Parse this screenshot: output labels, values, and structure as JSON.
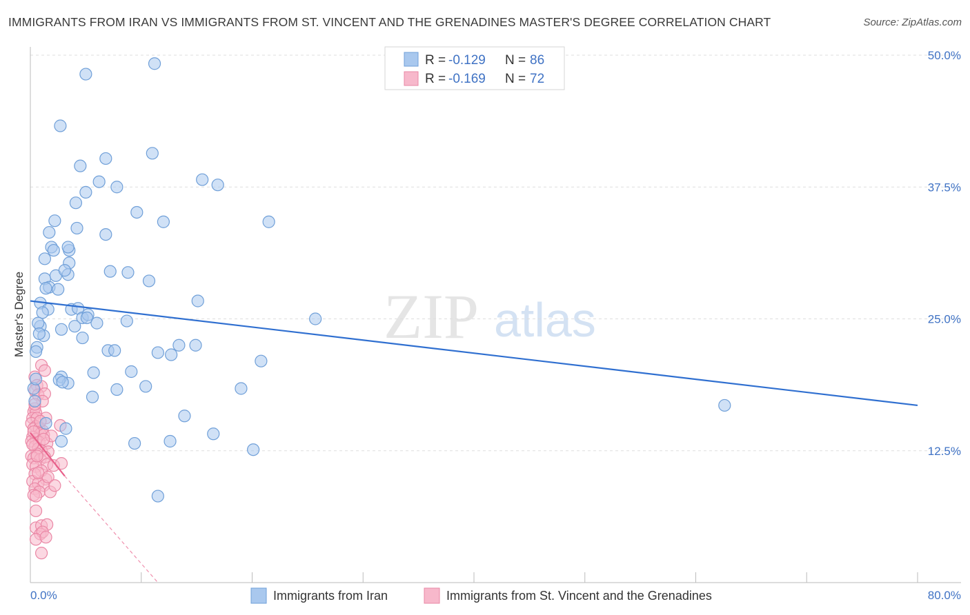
{
  "header": {
    "title": "IMMIGRANTS FROM IRAN VS IMMIGRANTS FROM ST. VINCENT AND THE GRENADINES MASTER'S DEGREE CORRELATION CHART",
    "source": "Source: ZipAtlas.com"
  },
  "watermark": {
    "zip": "ZIP",
    "atlas": "atlas"
  },
  "colors": {
    "iran_fill": "#a9c8ee",
    "iran_stroke": "#6f9fd8",
    "iran_line": "#2f6fd0",
    "svg_fill": "#f7b8cb",
    "svg_stroke": "#ea87a5",
    "svg_line": "#e8608a",
    "axis_text": "#3f72c4",
    "grid": "#dddddd"
  },
  "stats_box": {
    "rows": [
      {
        "r_label": "R =",
        "r_value": "-0.129",
        "n_label": "N =",
        "n_value": "86"
      },
      {
        "r_label": "R =",
        "r_value": "-0.169",
        "n_label": "N =",
        "n_value": "72"
      }
    ]
  },
  "chart_data": {
    "type": "scatter",
    "title": "IMMIGRANTS FROM IRAN VS IMMIGRANTS FROM ST. VINCENT AND THE GRENADINES MASTER'S DEGREE CORRELATION CHART",
    "xlabel": "",
    "ylabel": "Master's Degree",
    "xlim": [
      0,
      80
    ],
    "ylim": [
      0,
      50
    ],
    "x_tick_labels": [
      "0.0%",
      "80.0%"
    ],
    "y_ticks": [
      12.5,
      25.0,
      37.5,
      50.0
    ],
    "y_tick_labels": [
      "12.5%",
      "25.0%",
      "37.5%",
      "50.0%"
    ],
    "grid": true,
    "legend": [
      "Immigrants from Iran",
      "Immigrants from St. Vincent and the Grenadines"
    ],
    "series": [
      {
        "name": "Immigrants from Iran",
        "R": -0.129,
        "N": 86,
        "trend": {
          "x": [
            0,
            80
          ],
          "y": [
            26.7,
            16.8
          ]
        },
        "points": [
          [
            11.2,
            49.2
          ],
          [
            5.0,
            48.2
          ],
          [
            2.7,
            43.3
          ],
          [
            6.8,
            40.2
          ],
          [
            11.0,
            40.7
          ],
          [
            4.5,
            39.5
          ],
          [
            6.2,
            38.0
          ],
          [
            7.8,
            37.5
          ],
          [
            15.5,
            38.2
          ],
          [
            16.9,
            37.7
          ],
          [
            5.0,
            37.0
          ],
          [
            4.1,
            36.0
          ],
          [
            9.6,
            35.1
          ],
          [
            12.0,
            34.2
          ],
          [
            21.5,
            34.2
          ],
          [
            2.2,
            34.3
          ],
          [
            4.2,
            33.6
          ],
          [
            1.7,
            33.2
          ],
          [
            6.8,
            33.0
          ],
          [
            1.9,
            31.8
          ],
          [
            2.1,
            31.5
          ],
          [
            3.5,
            31.5
          ],
          [
            3.4,
            31.8
          ],
          [
            1.3,
            30.7
          ],
          [
            3.5,
            30.3
          ],
          [
            7.2,
            29.5
          ],
          [
            8.8,
            29.4
          ],
          [
            3.4,
            29.2
          ],
          [
            1.3,
            28.8
          ],
          [
            2.3,
            29.1
          ],
          [
            10.7,
            28.6
          ],
          [
            1.7,
            28.0
          ],
          [
            2.5,
            27.8
          ],
          [
            15.1,
            26.7
          ],
          [
            0.9,
            26.5
          ],
          [
            3.7,
            25.9
          ],
          [
            4.3,
            26.0
          ],
          [
            1.6,
            25.9
          ],
          [
            1.1,
            25.6
          ],
          [
            25.7,
            25.0
          ],
          [
            4.7,
            25.1
          ],
          [
            5.2,
            25.4
          ],
          [
            5.1,
            25.1
          ],
          [
            8.7,
            24.8
          ],
          [
            4.0,
            24.3
          ],
          [
            0.9,
            24.3
          ],
          [
            2.8,
            24.0
          ],
          [
            0.7,
            24.6
          ],
          [
            1.2,
            23.4
          ],
          [
            4.7,
            23.2
          ],
          [
            13.4,
            22.5
          ],
          [
            14.9,
            22.5
          ],
          [
            0.6,
            22.3
          ],
          [
            0.5,
            21.9
          ],
          [
            7.0,
            22.0
          ],
          [
            7.6,
            22.0
          ],
          [
            11.5,
            21.8
          ],
          [
            12.7,
            21.6
          ],
          [
            20.8,
            21.0
          ],
          [
            9.1,
            20.0
          ],
          [
            5.7,
            19.9
          ],
          [
            2.8,
            19.5
          ],
          [
            3.4,
            18.9
          ],
          [
            2.6,
            19.2
          ],
          [
            10.4,
            18.6
          ],
          [
            19.0,
            18.4
          ],
          [
            7.8,
            18.3
          ],
          [
            5.6,
            17.6
          ],
          [
            0.3,
            18.4
          ],
          [
            0.4,
            17.2
          ],
          [
            62.6,
            16.8
          ],
          [
            13.9,
            15.8
          ],
          [
            1.4,
            15.1
          ],
          [
            3.2,
            14.6
          ],
          [
            16.5,
            14.1
          ],
          [
            2.8,
            13.4
          ],
          [
            9.4,
            13.2
          ],
          [
            12.6,
            13.4
          ],
          [
            20.1,
            12.6
          ],
          [
            11.5,
            8.2
          ],
          [
            0.5,
            19.3
          ],
          [
            2.9,
            19.0
          ],
          [
            6.0,
            24.6
          ],
          [
            1.4,
            27.9
          ],
          [
            3.1,
            29.6
          ],
          [
            0.8,
            23.6
          ]
        ]
      },
      {
        "name": "Immigrants from St. Vincent and the Grenadines",
        "R": -0.169,
        "N": 72,
        "trend": {
          "x": [
            0,
            3.1
          ],
          "y": [
            14.2,
            10.1
          ]
        },
        "trend_extension": {
          "x": [
            3.1,
            11.5
          ],
          "y": [
            10.1,
            0
          ]
        },
        "points": [
          [
            1.0,
            20.6
          ],
          [
            1.3,
            20.1
          ],
          [
            0.4,
            19.5
          ],
          [
            0.6,
            18.7
          ],
          [
            1.0,
            18.6
          ],
          [
            0.4,
            18.2
          ],
          [
            0.7,
            17.8
          ],
          [
            1.3,
            17.9
          ],
          [
            1.1,
            17.2
          ],
          [
            0.4,
            16.5
          ],
          [
            0.3,
            16.2
          ],
          [
            0.5,
            16.1
          ],
          [
            0.2,
            15.6
          ],
          [
            0.6,
            15.6
          ],
          [
            1.4,
            15.6
          ],
          [
            0.1,
            15.1
          ],
          [
            0.5,
            14.8
          ],
          [
            0.3,
            14.6
          ],
          [
            0.8,
            14.6
          ],
          [
            1.1,
            14.4
          ],
          [
            0.9,
            14.1
          ],
          [
            1.2,
            14.0
          ],
          [
            0.2,
            13.8
          ],
          [
            0.5,
            13.6
          ],
          [
            0.1,
            13.4
          ],
          [
            0.8,
            13.3
          ],
          [
            1.5,
            13.2
          ],
          [
            1.9,
            13.9
          ],
          [
            2.7,
            14.9
          ],
          [
            0.4,
            12.9
          ],
          [
            0.7,
            12.7
          ],
          [
            1.0,
            12.5
          ],
          [
            1.6,
            12.4
          ],
          [
            0.6,
            12.2
          ],
          [
            0.1,
            12.0
          ],
          [
            0.3,
            11.8
          ],
          [
            0.9,
            11.7
          ],
          [
            1.3,
            11.9
          ],
          [
            1.5,
            11.2
          ],
          [
            2.1,
            11.1
          ],
          [
            2.8,
            11.3
          ],
          [
            0.2,
            11.2
          ],
          [
            0.5,
            11.0
          ],
          [
            1.0,
            10.6
          ],
          [
            0.4,
            10.3
          ],
          [
            1.4,
            9.8
          ],
          [
            0.2,
            9.6
          ],
          [
            0.7,
            9.4
          ],
          [
            1.2,
            9.2
          ],
          [
            0.4,
            8.9
          ],
          [
            0.8,
            8.6
          ],
          [
            1.8,
            8.6
          ],
          [
            0.3,
            8.3
          ],
          [
            0.5,
            8.2
          ],
          [
            1.6,
            10.0
          ],
          [
            0.5,
            6.8
          ],
          [
            0.5,
            5.2
          ],
          [
            1.0,
            5.4
          ],
          [
            1.5,
            5.5
          ],
          [
            0.9,
            4.6
          ],
          [
            1.1,
            4.8
          ],
          [
            0.5,
            4.1
          ],
          [
            1.4,
            4.3
          ],
          [
            1.0,
            2.8
          ],
          [
            2.2,
            9.2
          ],
          [
            0.2,
            13.1
          ],
          [
            0.6,
            12.0
          ],
          [
            0.9,
            15.3
          ],
          [
            0.3,
            14.3
          ],
          [
            0.7,
            10.4
          ],
          [
            1.2,
            13.6
          ],
          [
            0.4,
            16.9
          ]
        ]
      }
    ]
  }
}
